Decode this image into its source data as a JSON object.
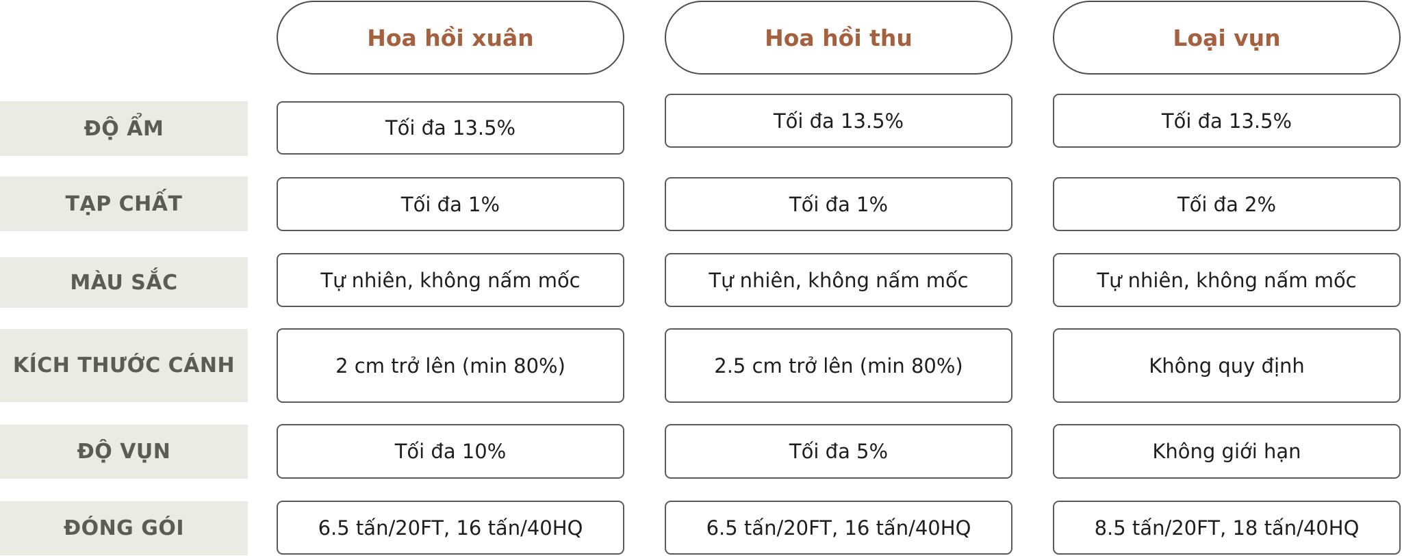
{
  "headers": [
    "Hoa hồi xuân",
    "Hoa hồi thu",
    "Loại vụn"
  ],
  "rows": [
    {
      "label": "ĐỘ ẨM",
      "values": [
        "Tối đa 13.5%",
        "Tối đa 13.5%",
        "Tối đa 13.5%"
      ]
    },
    {
      "label": "TẠP CHẤT",
      "values": [
        "Tối đa 1%",
        "Tối đa 1%",
        "Tối đa 2%"
      ]
    },
    {
      "label": "MÀU SẮC",
      "values": [
        "Tự nhiên, không nấm mốc",
        "Tự nhiên, không nấm mốc",
        "Tự nhiên, không nấm mốc"
      ]
    },
    {
      "label": "KÍCH THƯỚC CÁNH",
      "values": [
        "2 cm trở lên (min 80%)",
        "2.5 cm trở lên (min 80%)",
        "Không quy định"
      ]
    },
    {
      "label": "ĐỘ VỤN",
      "values": [
        "Tối đa 10%",
        "Tối đa 5%",
        "Không giới hạn"
      ]
    },
    {
      "label": "ĐÓNG GÓI",
      "values": [
        "6.5 tấn/20FT, 16 tấn/40HQ",
        "6.5 tấn/20FT, 16 tấn/40HQ",
        "8.5 tấn/20FT, 18 tấn/40HQ"
      ]
    }
  ]
}
